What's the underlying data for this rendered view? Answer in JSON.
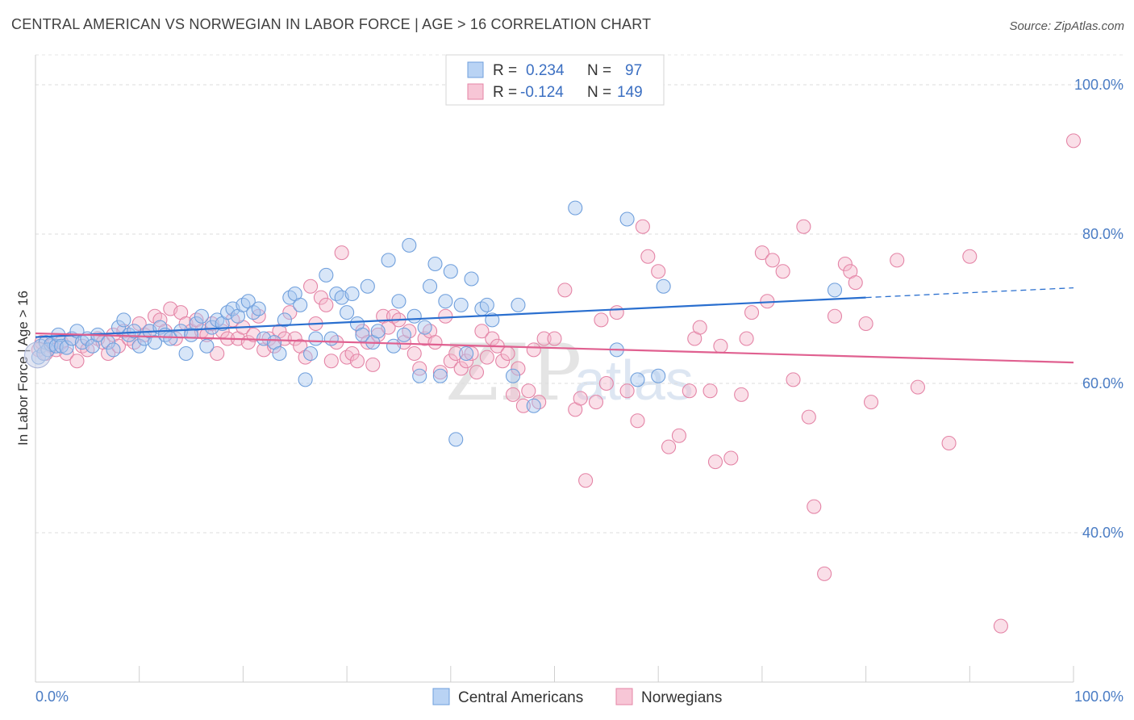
{
  "title": "CENTRAL AMERICAN VS NORWEGIAN IN LABOR FORCE | AGE > 16 CORRELATION CHART",
  "source": "Source: ZipAtlas.com",
  "watermark": {
    "zip": "ZIP",
    "atlas": "atlas"
  },
  "chart_data": {
    "type": "scatter",
    "xlabel": "",
    "ylabel": "In Labor Force | Age > 16",
    "xlim": [
      0,
      100
    ],
    "ylim": [
      20,
      104
    ],
    "x_tick_labels": [
      "0.0%",
      "100.0%"
    ],
    "y_ticks": [
      40,
      60,
      80,
      100
    ],
    "y_tick_labels": [
      "40.0%",
      "60.0%",
      "80.0%",
      "100.0%"
    ],
    "grid": true,
    "legend_position": "top-center",
    "legend": [
      {
        "r_label": "R =",
        "r": "0.234",
        "n_label": "N =",
        "n": "97"
      },
      {
        "r_label": "R =",
        "r": "-0.124",
        "n_label": "N =",
        "n": "149"
      }
    ],
    "series": [
      {
        "name": "Central Americans",
        "color": "#a8c8f0",
        "edge": "#6f9fdc",
        "trend_color": "#2a6fcf",
        "trend": {
          "x0": 0,
          "y0": 66.2,
          "x1": 80,
          "y1": 71.5,
          "dash_to_x": 100,
          "dash_to_y": 72.8
        },
        "points": [
          [
            0.3,
            63.5
          ],
          [
            0.5,
            65
          ],
          [
            0.8,
            64
          ],
          [
            1,
            65.5
          ],
          [
            1.2,
            64.5
          ],
          [
            1.5,
            65.2
          ],
          [
            2,
            65
          ],
          [
            2.2,
            66.5
          ],
          [
            2.5,
            65
          ],
          [
            3,
            64.8
          ],
          [
            3.5,
            66
          ],
          [
            4,
            67
          ],
          [
            4.5,
            65.5
          ],
          [
            5,
            66
          ],
          [
            5.5,
            65
          ],
          [
            6,
            66.5
          ],
          [
            7,
            65.5
          ],
          [
            7.5,
            64.5
          ],
          [
            8,
            67.5
          ],
          [
            8.5,
            68.5
          ],
          [
            9,
            66.5
          ],
          [
            9.5,
            67
          ],
          [
            10,
            65
          ],
          [
            10.5,
            66
          ],
          [
            11,
            67
          ],
          [
            11.5,
            65.5
          ],
          [
            12,
            67.5
          ],
          [
            12.5,
            66.5
          ],
          [
            13,
            66
          ],
          [
            14,
            67
          ],
          [
            14.5,
            64
          ],
          [
            15,
            66.5
          ],
          [
            15.5,
            68
          ],
          [
            16,
            69
          ],
          [
            16.5,
            65
          ],
          [
            17,
            67.5
          ],
          [
            17.5,
            68.5
          ],
          [
            18,
            68
          ],
          [
            18.5,
            69.5
          ],
          [
            19,
            70
          ],
          [
            19.5,
            69
          ],
          [
            20,
            70.5
          ],
          [
            20.5,
            71
          ],
          [
            21,
            69.5
          ],
          [
            21.5,
            70
          ],
          [
            22,
            66
          ],
          [
            23,
            65.5
          ],
          [
            23.5,
            64
          ],
          [
            24,
            68.5
          ],
          [
            24.5,
            71.5
          ],
          [
            25,
            72
          ],
          [
            25.5,
            70.5
          ],
          [
            26,
            60.5
          ],
          [
            26.5,
            64
          ],
          [
            27,
            66
          ],
          [
            28,
            74.5
          ],
          [
            28.5,
            66
          ],
          [
            29,
            72
          ],
          [
            29.5,
            71.5
          ],
          [
            30,
            69.5
          ],
          [
            30.5,
            72
          ],
          [
            31,
            68
          ],
          [
            31.5,
            66.5
          ],
          [
            32,
            73
          ],
          [
            32.5,
            65.5
          ],
          [
            33,
            67
          ],
          [
            34,
            76.5
          ],
          [
            34.5,
            65
          ],
          [
            35,
            71
          ],
          [
            35.5,
            66.5
          ],
          [
            36,
            78.5
          ],
          [
            36.5,
            69
          ],
          [
            37,
            61
          ],
          [
            37.5,
            67.5
          ],
          [
            38,
            73
          ],
          [
            38.5,
            76
          ],
          [
            39,
            61
          ],
          [
            39.5,
            71
          ],
          [
            40,
            75
          ],
          [
            40.5,
            52.5
          ],
          [
            41,
            70.5
          ],
          [
            41.5,
            64
          ],
          [
            42,
            74
          ],
          [
            43,
            70
          ],
          [
            43.5,
            70.5
          ],
          [
            44,
            68.5
          ],
          [
            46,
            61
          ],
          [
            46.5,
            70.5
          ],
          [
            48,
            57
          ],
          [
            52,
            83.5
          ],
          [
            56,
            64.5
          ],
          [
            57,
            82
          ],
          [
            58,
            60.5
          ],
          [
            60,
            61
          ],
          [
            60.5,
            73
          ],
          [
            77,
            72.5
          ]
        ]
      },
      {
        "name": "Norwegians",
        "color": "#f4b8cc",
        "edge": "#e484a6",
        "trend_color": "#e06090",
        "trend": {
          "x0": 0,
          "y0": 66.7,
          "x1": 100,
          "y1": 62.8
        },
        "points": [
          [
            0.3,
            64.5
          ],
          [
            0.6,
            65.5
          ],
          [
            1,
            64
          ],
          [
            1.5,
            65
          ],
          [
            2,
            64.5
          ],
          [
            2.5,
            65.5
          ],
          [
            3,
            64
          ],
          [
            3.5,
            66
          ],
          [
            4,
            63
          ],
          [
            4.5,
            65
          ],
          [
            5,
            64.5
          ],
          [
            6,
            66
          ],
          [
            6.5,
            65.5
          ],
          [
            7,
            64
          ],
          [
            7.5,
            66.5
          ],
          [
            8,
            65
          ],
          [
            8.5,
            67
          ],
          [
            9,
            66
          ],
          [
            9.5,
            65.5
          ],
          [
            10,
            68
          ],
          [
            10.5,
            66.5
          ],
          [
            11,
            67
          ],
          [
            11.5,
            69
          ],
          [
            12,
            68.5
          ],
          [
            12.5,
            67
          ],
          [
            13,
            70
          ],
          [
            13.5,
            66
          ],
          [
            14,
            69.5
          ],
          [
            14.5,
            68
          ],
          [
            15,
            67
          ],
          [
            15.5,
            68.5
          ],
          [
            16,
            67
          ],
          [
            16.5,
            66.5
          ],
          [
            17,
            68
          ],
          [
            17.5,
            64
          ],
          [
            18,
            67
          ],
          [
            18.5,
            66
          ],
          [
            19,
            68.5
          ],
          [
            19.5,
            66
          ],
          [
            20,
            67.5
          ],
          [
            20.5,
            65.5
          ],
          [
            21,
            66.5
          ],
          [
            21.5,
            69
          ],
          [
            22,
            64.5
          ],
          [
            22.5,
            66
          ],
          [
            23,
            65
          ],
          [
            23.5,
            67
          ],
          [
            24,
            66
          ],
          [
            24.5,
            69.5
          ],
          [
            25,
            66
          ],
          [
            25.5,
            65
          ],
          [
            26,
            63.5
          ],
          [
            26.5,
            73
          ],
          [
            27,
            68
          ],
          [
            27.5,
            71.5
          ],
          [
            28,
            70.5
          ],
          [
            28.5,
            63
          ],
          [
            29,
            65.5
          ],
          [
            29.5,
            77.5
          ],
          [
            30,
            63.5
          ],
          [
            30.5,
            64
          ],
          [
            31,
            63
          ],
          [
            31.5,
            67
          ],
          [
            32,
            65.5
          ],
          [
            32.5,
            62.5
          ],
          [
            33,
            66.5
          ],
          [
            33.5,
            69
          ],
          [
            34,
            67.5
          ],
          [
            34.5,
            69
          ],
          [
            35,
            68.5
          ],
          [
            35.5,
            65.5
          ],
          [
            36,
            67
          ],
          [
            36.5,
            64
          ],
          [
            37,
            62
          ],
          [
            37.5,
            66
          ],
          [
            38,
            67
          ],
          [
            38.5,
            65.5
          ],
          [
            39,
            61.5
          ],
          [
            39.5,
            69
          ],
          [
            40,
            63
          ],
          [
            40.5,
            64
          ],
          [
            41,
            62
          ],
          [
            41.5,
            63
          ],
          [
            42,
            64
          ],
          [
            42.5,
            61.5
          ],
          [
            43,
            67
          ],
          [
            43.5,
            63.5
          ],
          [
            44,
            66
          ],
          [
            44.5,
            65
          ],
          [
            45,
            63
          ],
          [
            45.5,
            64
          ],
          [
            46,
            58.5
          ],
          [
            46.5,
            62
          ],
          [
            47,
            57
          ],
          [
            47.5,
            59
          ],
          [
            48,
            64.5
          ],
          [
            48.5,
            57.5
          ],
          [
            49,
            66
          ],
          [
            50,
            66
          ],
          [
            51,
            72.5
          ],
          [
            52,
            56.5
          ],
          [
            52.5,
            58
          ],
          [
            53,
            47
          ],
          [
            54,
            57.5
          ],
          [
            54.5,
            68.5
          ],
          [
            55,
            60
          ],
          [
            56,
            69.5
          ],
          [
            57,
            59
          ],
          [
            58,
            55
          ],
          [
            58.5,
            81
          ],
          [
            59,
            77
          ],
          [
            60,
            75
          ],
          [
            61,
            51.5
          ],
          [
            62,
            53
          ],
          [
            63,
            59
          ],
          [
            63.5,
            66
          ],
          [
            64,
            67.5
          ],
          [
            65,
            59
          ],
          [
            65.5,
            49.5
          ],
          [
            66,
            65
          ],
          [
            67,
            50
          ],
          [
            68,
            58.5
          ],
          [
            68.5,
            66
          ],
          [
            69,
            69.5
          ],
          [
            70,
            77.5
          ],
          [
            70.5,
            71
          ],
          [
            71,
            76.5
          ],
          [
            72,
            75
          ],
          [
            73,
            60.5
          ],
          [
            74,
            81
          ],
          [
            74.5,
            55.5
          ],
          [
            75,
            43.5
          ],
          [
            76,
            34.5
          ],
          [
            77,
            69
          ],
          [
            78,
            76
          ],
          [
            78.5,
            75
          ],
          [
            79,
            73.5
          ],
          [
            80,
            68
          ],
          [
            80.5,
            57.5
          ],
          [
            83,
            76.5
          ],
          [
            85,
            59.5
          ],
          [
            88,
            52
          ],
          [
            90,
            77
          ],
          [
            93,
            27.5
          ],
          [
            100,
            92.5
          ]
        ]
      }
    ]
  }
}
